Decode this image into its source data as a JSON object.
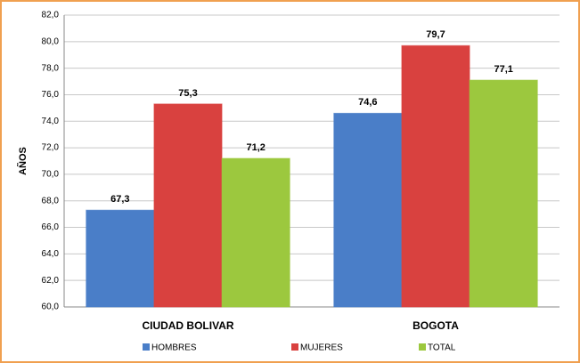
{
  "chart_data": {
    "type": "bar",
    "ylabel": "AÑOS",
    "categories": [
      "CIUDAD BOLIVAR",
      "BOGOTA"
    ],
    "series": [
      {
        "name": "HOMBRES",
        "color": "#4a7ec8",
        "values": [
          67.3,
          74.6
        ],
        "value_labels": [
          "67,3",
          "74,6"
        ]
      },
      {
        "name": "MUJERES",
        "color": "#d9413f",
        "values": [
          75.3,
          79.7
        ],
        "value_labels": [
          "75,3",
          "79,7"
        ]
      },
      {
        "name": "TOTAL",
        "color": "#9cc83e",
        "values": [
          71.2,
          77.1
        ],
        "value_labels": [
          "71,2",
          "77,1"
        ]
      }
    ],
    "ylim": [
      60,
      82
    ],
    "yticks": [
      {
        "value": 60,
        "label": "60,0"
      },
      {
        "value": 62,
        "label": "62,0"
      },
      {
        "value": 64,
        "label": "64,0"
      },
      {
        "value": 66,
        "label": "66,0"
      },
      {
        "value": 68,
        "label": "68,0"
      },
      {
        "value": 70,
        "label": "70,0"
      },
      {
        "value": 72,
        "label": "72,0"
      },
      {
        "value": 74,
        "label": "74,0"
      },
      {
        "value": 76,
        "label": "76,0"
      },
      {
        "value": 78,
        "label": "78,0"
      },
      {
        "value": 80,
        "label": "80,0"
      },
      {
        "value": 82,
        "label": "82,0"
      }
    ],
    "grid": true,
    "legend": "bottom"
  }
}
